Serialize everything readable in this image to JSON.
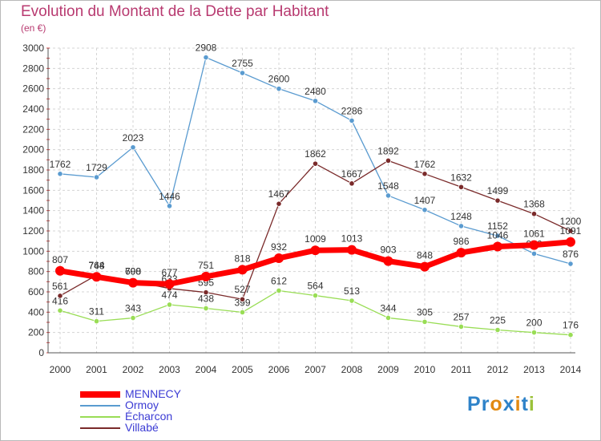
{
  "title": "Evolution du Montant de la Dette par Habitant",
  "unit": "(en €)",
  "logo": {
    "letters": [
      "P",
      "r",
      "o",
      "x",
      "i",
      "t",
      "i"
    ],
    "colors": [
      "#2f83c9",
      "#2f83c9",
      "#e28a12",
      "#2f83c9",
      "#e28a12",
      "#2f83c9",
      "#9bc23a"
    ]
  },
  "chart_data": {
    "type": "line",
    "title": "Evolution du Montant de la Dette par Habitant",
    "ylabel": "(en €)",
    "xlabel": "",
    "ylim": [
      0,
      3000
    ],
    "yticks": [
      "0",
      "200",
      "400",
      "600",
      "800",
      "1000",
      "1200",
      "1400",
      "1600",
      "1800",
      "2000",
      "2200",
      "2400",
      "2600",
      "2800",
      "3000"
    ],
    "categories": [
      "2000",
      "2001",
      "2002",
      "2003",
      "2004",
      "2005",
      "2006",
      "2007",
      "2008",
      "2009",
      "2010",
      "2011",
      "2012",
      "2013",
      "2014"
    ],
    "grid": true,
    "legend": "bottom-left",
    "series": [
      {
        "name": "Ormoy",
        "color": "#5a9bd0",
        "values": [
          1762,
          1729,
          2023,
          1446,
          2908,
          2755,
          2600,
          2480,
          2286,
          1548,
          1407,
          1248,
          1152,
          976,
          876
        ]
      },
      {
        "name": "Écharcon",
        "color": "#99dd55",
        "values": [
          416,
          311,
          343,
          474,
          438,
          399,
          612,
          564,
          513,
          344,
          305,
          257,
          225,
          200,
          176
        ]
      },
      {
        "name": "Villabé",
        "color": "#7a2a2a",
        "values": [
          561,
          764,
          708,
          633,
          595,
          527,
          1467,
          1862,
          1667,
          1892,
          1762,
          1632,
          1499,
          1368,
          1200
        ]
      },
      {
        "name": "MENNECY",
        "color": "#ff0000",
        "values": [
          807,
          748,
          690,
          677,
          751,
          818,
          932,
          1009,
          1013,
          903,
          848,
          986,
          1046,
          1061,
          1091
        ]
      }
    ]
  }
}
